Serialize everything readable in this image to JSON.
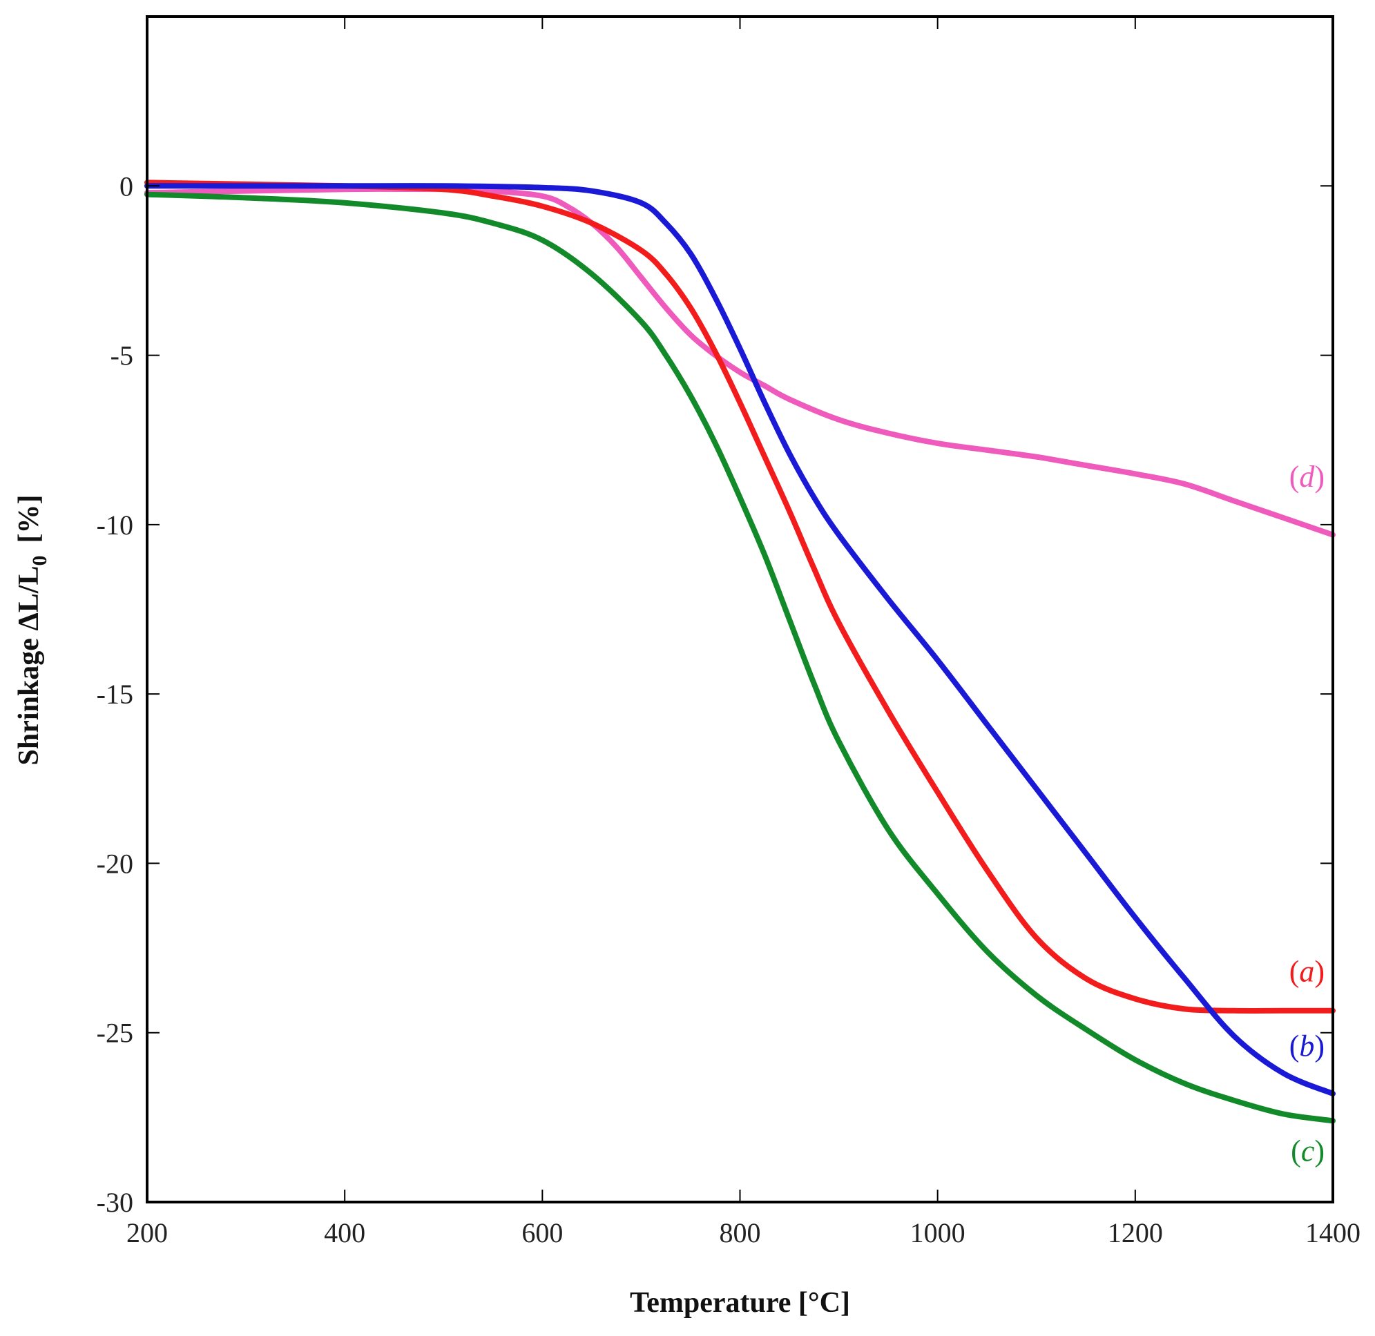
{
  "chart_data": {
    "type": "line",
    "title": "",
    "xlabel": "Temperature [°C]",
    "ylabel_main": "Shrinkage ΔL/L",
    "ylabel_sub": "0",
    "ylabel_unit": "[%]",
    "xlim": [
      200,
      1400
    ],
    "ylim": [
      -30,
      5
    ],
    "xticks": [
      200,
      400,
      600,
      800,
      1000,
      1200,
      1400
    ],
    "yticks": [
      0,
      -5,
      -10,
      -15,
      -20,
      -25,
      -30
    ],
    "xtick_labels": [
      "200",
      "400",
      "600",
      "800",
      "1000",
      "1200",
      "1400"
    ],
    "ytick_labels": [
      "0",
      "-5",
      "-10",
      "-15",
      "-20",
      "-25",
      "-30"
    ],
    "grid": false,
    "series": [
      {
        "name": "(a)",
        "letter": "a",
        "color": "#f21c1c",
        "label_y": -23.2,
        "x": [
          200,
          300,
          400,
          500,
          550,
          600,
          650,
          700,
          725,
          750,
          775,
          800,
          825,
          850,
          875,
          900,
          950,
          1000,
          1050,
          1100,
          1150,
          1200,
          1250,
          1300,
          1350,
          1400
        ],
        "y": [
          0.1,
          0.05,
          0.0,
          -0.1,
          -0.3,
          -0.6,
          -1.1,
          -1.9,
          -2.6,
          -3.6,
          -4.9,
          -6.4,
          -8.0,
          -9.6,
          -11.3,
          -12.9,
          -15.5,
          -17.9,
          -20.2,
          -22.2,
          -23.4,
          -24.0,
          -24.3,
          -24.35,
          -24.35,
          -24.35
        ]
      },
      {
        "name": "(b)",
        "letter": "b",
        "color": "#1a1ad6",
        "label_y": -25.4,
        "x": [
          200,
          300,
          400,
          500,
          600,
          650,
          700,
          725,
          750,
          775,
          800,
          825,
          850,
          875,
          900,
          950,
          1000,
          1050,
          1100,
          1150,
          1200,
          1250,
          1300,
          1350,
          1400
        ],
        "y": [
          0.0,
          0.0,
          0.0,
          0.0,
          -0.05,
          -0.15,
          -0.5,
          -1.1,
          -2.0,
          -3.3,
          -4.8,
          -6.4,
          -7.9,
          -9.2,
          -10.3,
          -12.2,
          -14.0,
          -15.9,
          -17.8,
          -19.7,
          -21.6,
          -23.4,
          -25.1,
          -26.2,
          -26.8
        ]
      },
      {
        "name": "(c)",
        "letter": "c",
        "color": "#138a2a",
        "label_y": -28.5,
        "x": [
          200,
          300,
          400,
          500,
          550,
          600,
          650,
          700,
          725,
          750,
          775,
          800,
          825,
          850,
          875,
          900,
          950,
          1000,
          1050,
          1100,
          1150,
          1200,
          1250,
          1300,
          1350,
          1400
        ],
        "y": [
          -0.25,
          -0.35,
          -0.5,
          -0.8,
          -1.1,
          -1.6,
          -2.6,
          -4.0,
          -5.0,
          -6.2,
          -7.6,
          -9.2,
          -10.9,
          -12.8,
          -14.7,
          -16.4,
          -19.0,
          -20.9,
          -22.6,
          -23.9,
          -24.9,
          -25.8,
          -26.5,
          -27.0,
          -27.4,
          -27.6
        ]
      },
      {
        "name": "(d)",
        "letter": "d",
        "color": "#ee5bbd",
        "label_y": -8.6,
        "x": [
          200,
          300,
          400,
          500,
          550,
          600,
          625,
          650,
          675,
          700,
          725,
          750,
          775,
          800,
          825,
          850,
          900,
          950,
          1000,
          1050,
          1100,
          1150,
          1200,
          1250,
          1300,
          1350,
          1400
        ],
        "y": [
          -0.2,
          -0.15,
          -0.1,
          -0.1,
          -0.15,
          -0.3,
          -0.6,
          -1.1,
          -1.8,
          -2.7,
          -3.6,
          -4.4,
          -5.0,
          -5.5,
          -5.9,
          -6.3,
          -6.9,
          -7.3,
          -7.6,
          -7.8,
          -8.0,
          -8.25,
          -8.5,
          -8.8,
          -9.3,
          -9.8,
          -10.3
        ]
      }
    ]
  }
}
